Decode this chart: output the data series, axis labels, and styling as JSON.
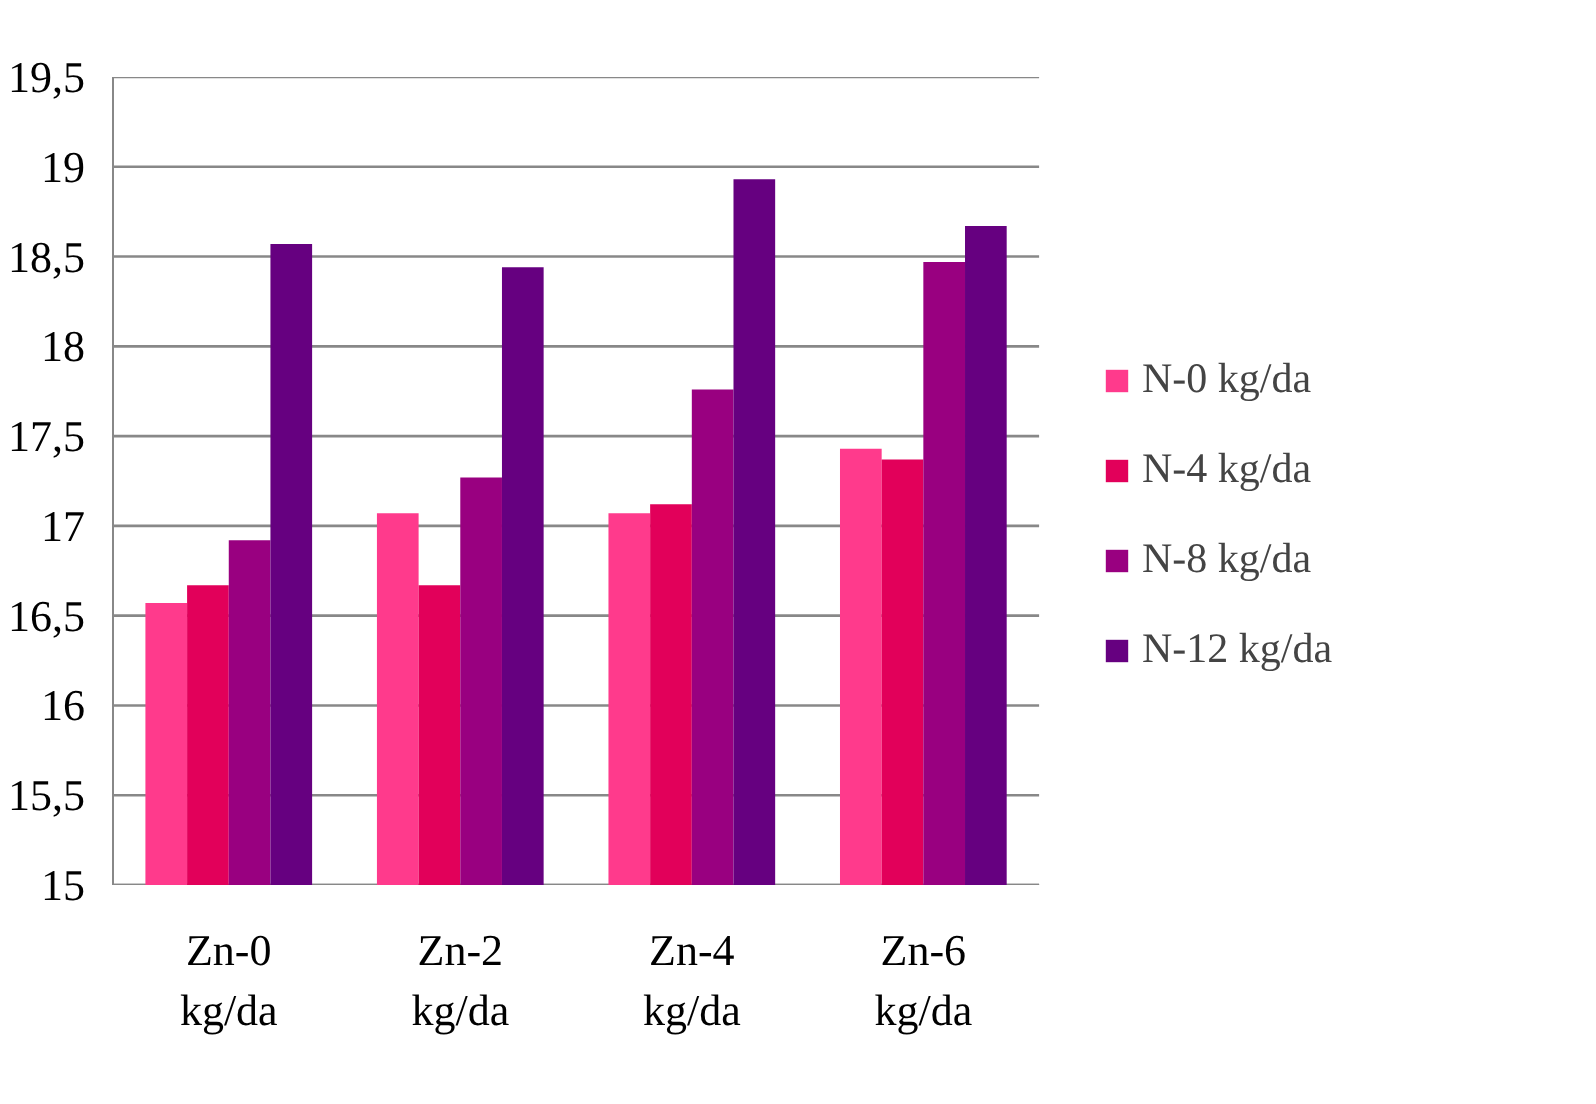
{
  "chart_data": {
    "type": "bar",
    "categories": [
      "Zn-0 kg/da",
      "Zn-2 kg/da",
      "Zn-4 kg/da",
      "Zn-6 kg/da"
    ],
    "series": [
      {
        "name": "N-0 kg/da",
        "color": "#ff3a8c",
        "values": [
          16.57,
          17.07,
          17.07,
          17.43
        ]
      },
      {
        "name": "N-4 kg/da",
        "color": "#e2005a",
        "values": [
          16.67,
          16.67,
          17.12,
          17.37
        ]
      },
      {
        "name": "N-8 kg/da",
        "color": "#990080",
        "values": [
          16.92,
          17.27,
          17.76,
          18.47
        ]
      },
      {
        "name": "N-12 kg/da",
        "color": "#660080",
        "values": [
          18.57,
          18.44,
          18.93,
          18.67
        ]
      }
    ],
    "ylim": [
      15,
      19.5
    ],
    "yticks": [
      15,
      {
        "value": 15.5,
        "label": "15,5"
      },
      16,
      {
        "value": 16.5,
        "label": "16,5"
      },
      17,
      {
        "value": 17.5,
        "label": "17,5"
      },
      18,
      {
        "value": 18.5,
        "label": "18,5"
      },
      19,
      {
        "value": 19.5,
        "label": "19,5"
      }
    ],
    "grid": "y",
    "legend": "right"
  }
}
